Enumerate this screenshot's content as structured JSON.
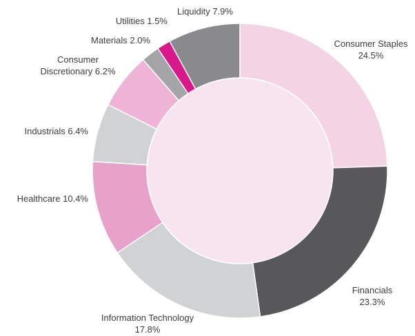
{
  "chart_data": {
    "type": "donut",
    "categories": [
      "Consumer Staples",
      "Financials",
      "Information Technology",
      "Healthcare",
      "Industrials",
      "Consumer Discretionary",
      "Materials",
      "Utilities",
      "Liquidity"
    ],
    "values": [
      24.5,
      23.3,
      17.8,
      10.4,
      6.4,
      6.2,
      2.0,
      1.5,
      7.9
    ],
    "value_labels": [
      "24.5%",
      "23.3%",
      "17.8%",
      "10.4%",
      "6.4%",
      "6.2%",
      "2.0%",
      "1.5%",
      "7.9%"
    ],
    "colors": [
      "#f4d3e4",
      "#58585a",
      "#d1d2d4",
      "#e8a1c8",
      "#d1d2d4",
      "#efb4d5",
      "#a5a5a7",
      "#d9188b",
      "#8a8a8c"
    ]
  }
}
